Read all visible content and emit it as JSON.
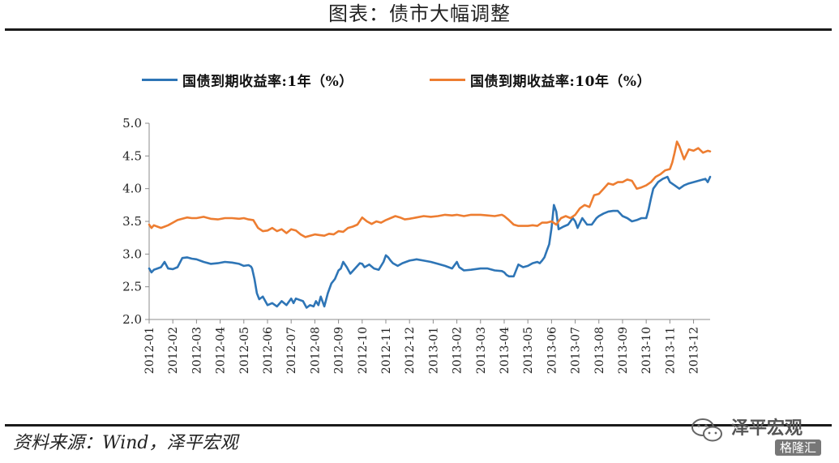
{
  "figure": {
    "title": "图表：债市大幅调整",
    "source": "资料来源：Wind，泽平宏观"
  },
  "watermark": {
    "text": "泽平宏观",
    "badge": "格隆汇",
    "icon": "wechat-icon"
  },
  "colors": {
    "series_1y": "#2E75B6",
    "series_10y": "#ED7D31",
    "axis": "#8c8c8c",
    "text": "#222222"
  },
  "chart_data": {
    "type": "line",
    "title": "图表：债市大幅调整",
    "xlabel": "",
    "ylabel": "",
    "ylim": [
      2.0,
      5.0
    ],
    "yticks": [
      "2.0",
      "2.5",
      "3.0",
      "3.5",
      "4.0",
      "4.5",
      "5.0"
    ],
    "grid": false,
    "legend_position": "top",
    "categories": [
      "2012-01",
      "2012-02",
      "2012-03",
      "2012-04",
      "2012-05",
      "2012-06",
      "2012-07",
      "2012-08",
      "2012-09",
      "2012-10",
      "2012-11",
      "2012-12",
      "2013-01",
      "2013-02",
      "2013-03",
      "2013-04",
      "2013-05",
      "2013-06",
      "2013-07",
      "2013-08",
      "2013-09",
      "2013-10",
      "2013-11",
      "2013-12"
    ],
    "series": [
      {
        "name": "国债到期收益率:1年（%）",
        "color": "#2E75B6",
        "x": [
          0.0,
          0.1,
          0.2,
          0.35,
          0.5,
          0.65,
          0.8,
          1.0,
          1.2,
          1.4,
          1.6,
          1.8,
          2.0,
          2.3,
          2.6,
          2.9,
          3.2,
          3.5,
          3.8,
          4.0,
          4.2,
          4.3,
          4.35,
          4.45,
          4.55,
          4.65,
          4.8,
          5.0,
          5.2,
          5.4,
          5.6,
          5.8,
          6.0,
          6.1,
          6.2,
          6.35,
          6.5,
          6.65,
          6.8,
          6.95,
          7.05,
          7.15,
          7.25,
          7.4,
          7.55,
          7.7,
          7.85,
          8.0,
          8.1,
          8.2,
          8.35,
          8.5,
          8.7,
          8.9,
          9.0,
          9.1,
          9.3,
          9.5,
          9.7,
          9.9,
          10.0,
          10.1,
          10.2,
          10.3,
          10.5,
          10.7,
          11.0,
          11.3,
          11.6,
          11.9,
          12.2,
          12.5,
          12.8,
          13.0,
          13.1,
          13.3,
          13.6,
          14.0,
          14.3,
          14.6,
          14.9,
          15.0,
          15.1,
          15.2,
          15.4,
          15.6,
          15.8,
          16.0,
          16.2,
          16.4,
          16.5,
          16.6,
          16.7,
          16.8,
          16.9,
          17.0,
          17.1,
          17.2,
          17.3,
          17.5,
          17.7,
          17.9,
          18.0,
          18.1,
          18.3,
          18.5,
          18.7,
          18.9,
          19.0,
          19.2,
          19.4,
          19.6,
          19.8,
          20.0,
          20.2,
          20.4,
          20.6,
          20.8,
          21.0,
          21.1,
          21.2,
          21.3,
          21.5,
          21.7,
          21.9,
          22.0,
          22.2,
          22.4,
          22.6,
          22.8,
          23.0,
          23.2,
          23.4,
          23.5,
          23.6,
          23.7
        ],
        "values": [
          2.78,
          2.72,
          2.76,
          2.78,
          2.8,
          2.88,
          2.78,
          2.77,
          2.8,
          2.94,
          2.95,
          2.93,
          2.92,
          2.88,
          2.85,
          2.86,
          2.88,
          2.87,
          2.85,
          2.82,
          2.83,
          2.81,
          2.78,
          2.62,
          2.4,
          2.31,
          2.35,
          2.22,
          2.25,
          2.2,
          2.28,
          2.22,
          2.32,
          2.25,
          2.32,
          2.3,
          2.28,
          2.18,
          2.22,
          2.2,
          2.28,
          2.22,
          2.35,
          2.2,
          2.4,
          2.55,
          2.62,
          2.75,
          2.78,
          2.88,
          2.8,
          2.7,
          2.78,
          2.86,
          2.85,
          2.8,
          2.84,
          2.78,
          2.76,
          2.88,
          2.98,
          2.95,
          2.9,
          2.86,
          2.82,
          2.86,
          2.9,
          2.92,
          2.9,
          2.88,
          2.85,
          2.82,
          2.78,
          2.88,
          2.8,
          2.75,
          2.76,
          2.78,
          2.78,
          2.75,
          2.74,
          2.72,
          2.68,
          2.66,
          2.66,
          2.84,
          2.8,
          2.82,
          2.86,
          2.88,
          2.86,
          2.9,
          2.95,
          3.05,
          3.15,
          3.4,
          3.75,
          3.65,
          3.38,
          3.42,
          3.45,
          3.55,
          3.5,
          3.4,
          3.55,
          3.45,
          3.45,
          3.55,
          3.58,
          3.62,
          3.65,
          3.66,
          3.66,
          3.58,
          3.55,
          3.5,
          3.52,
          3.55,
          3.55,
          3.68,
          3.85,
          4.0,
          4.1,
          4.15,
          4.18,
          4.1,
          4.05,
          4.0,
          4.05,
          4.08,
          4.1,
          4.12,
          4.14,
          4.15,
          4.1,
          4.18
        ]
      },
      {
        "name": "国债到期收益率:10年（%）",
        "color": "#ED7D31",
        "x": [
          0.0,
          0.1,
          0.2,
          0.35,
          0.5,
          0.65,
          0.8,
          1.0,
          1.2,
          1.4,
          1.6,
          1.8,
          2.0,
          2.3,
          2.6,
          2.9,
          3.2,
          3.5,
          3.8,
          4.0,
          4.2,
          4.4,
          4.6,
          4.8,
          5.0,
          5.2,
          5.4,
          5.6,
          5.8,
          6.0,
          6.2,
          6.4,
          6.6,
          6.8,
          7.0,
          7.2,
          7.4,
          7.6,
          7.8,
          8.0,
          8.2,
          8.4,
          8.6,
          8.8,
          9.0,
          9.2,
          9.4,
          9.6,
          9.8,
          10.0,
          10.2,
          10.4,
          10.6,
          10.8,
          11.0,
          11.3,
          11.6,
          11.9,
          12.2,
          12.5,
          12.8,
          13.0,
          13.3,
          13.6,
          14.0,
          14.3,
          14.6,
          14.9,
          15.0,
          15.2,
          15.4,
          15.6,
          15.8,
          16.0,
          16.2,
          16.4,
          16.6,
          16.8,
          17.0,
          17.2,
          17.4,
          17.6,
          17.8,
          18.0,
          18.2,
          18.4,
          18.6,
          18.8,
          19.0,
          19.2,
          19.4,
          19.6,
          19.8,
          20.0,
          20.2,
          20.4,
          20.6,
          20.8,
          21.0,
          21.2,
          21.4,
          21.6,
          21.8,
          22.0,
          22.1,
          22.2,
          22.3,
          22.4,
          22.6,
          22.8,
          23.0,
          23.2,
          23.4,
          23.6,
          23.7
        ],
        "values": [
          3.45,
          3.4,
          3.44,
          3.42,
          3.4,
          3.42,
          3.44,
          3.48,
          3.52,
          3.54,
          3.56,
          3.55,
          3.55,
          3.57,
          3.54,
          3.53,
          3.55,
          3.55,
          3.54,
          3.55,
          3.53,
          3.52,
          3.4,
          3.35,
          3.36,
          3.4,
          3.35,
          3.38,
          3.32,
          3.38,
          3.36,
          3.3,
          3.26,
          3.28,
          3.3,
          3.29,
          3.28,
          3.31,
          3.3,
          3.35,
          3.34,
          3.4,
          3.42,
          3.45,
          3.56,
          3.5,
          3.46,
          3.5,
          3.48,
          3.52,
          3.55,
          3.58,
          3.56,
          3.53,
          3.54,
          3.56,
          3.58,
          3.57,
          3.58,
          3.6,
          3.59,
          3.6,
          3.58,
          3.6,
          3.6,
          3.59,
          3.58,
          3.6,
          3.58,
          3.52,
          3.45,
          3.43,
          3.43,
          3.43,
          3.44,
          3.43,
          3.48,
          3.48,
          3.5,
          3.45,
          3.55,
          3.58,
          3.55,
          3.6,
          3.7,
          3.75,
          3.72,
          3.9,
          3.92,
          4.0,
          4.08,
          4.06,
          4.1,
          4.1,
          4.14,
          4.12,
          4.0,
          4.02,
          4.05,
          4.1,
          4.18,
          4.22,
          4.28,
          4.3,
          4.4,
          4.55,
          4.72,
          4.65,
          4.45,
          4.6,
          4.58,
          4.62,
          4.55,
          4.58,
          4.57
        ]
      }
    ]
  }
}
